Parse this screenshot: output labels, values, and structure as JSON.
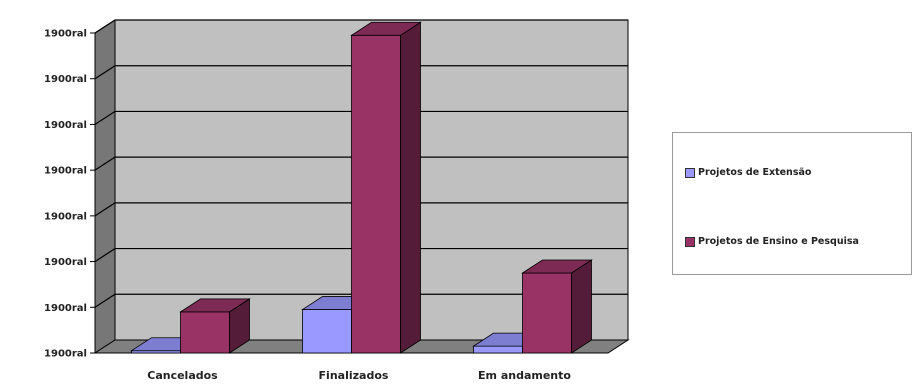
{
  "chart_data": {
    "type": "bar",
    "title": "",
    "xlabel": "",
    "ylabel": "",
    "categories": [
      "Cancelados",
      "Finalizados",
      "Em andamento"
    ],
    "y_tick_labels": [
      "1900ral",
      "1900ral",
      "1900ral",
      "1900ral",
      "1900ral",
      "1900ral",
      "1900ral",
      "1900ral"
    ],
    "ylim": [
      0,
      7
    ],
    "grid": true,
    "legend_position": "right",
    "series": [
      {
        "name": "Projetos de Extensão",
        "values": [
          0.05,
          0.95,
          0.15
        ],
        "color": "#9999ff"
      },
      {
        "name": "Projetos de Ensino e Pesquisa",
        "values": [
          0.9,
          6.95,
          1.75
        ],
        "color": "#993366"
      }
    ],
    "plot_colors": {
      "wall": "#c0c0c0",
      "gridline": "#000000",
      "floor": "#808080"
    }
  }
}
